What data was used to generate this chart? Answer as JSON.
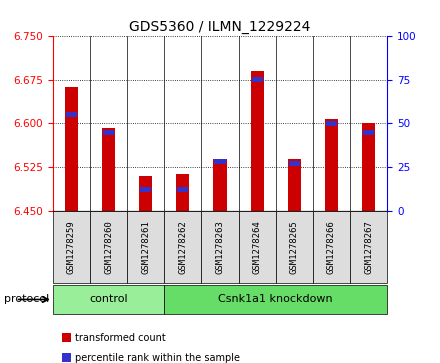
{
  "title": "GDS5360 / ILMN_1229224",
  "samples": [
    "GSM1278259",
    "GSM1278260",
    "GSM1278261",
    "GSM1278262",
    "GSM1278263",
    "GSM1278264",
    "GSM1278265",
    "GSM1278266",
    "GSM1278267"
  ],
  "transformed_count": [
    6.663,
    6.592,
    6.51,
    6.513,
    6.538,
    6.69,
    6.538,
    6.608,
    6.6
  ],
  "percentile_rank": [
    55,
    45,
    12,
    12,
    28,
    75,
    27,
    50,
    45
  ],
  "ylim_left": [
    6.45,
    6.75
  ],
  "ylim_right": [
    0,
    100
  ],
  "yticks_left": [
    6.45,
    6.525,
    6.6,
    6.675,
    6.75
  ],
  "yticks_right": [
    0,
    25,
    50,
    75,
    100
  ],
  "bar_color_red": "#CC0000",
  "bar_color_blue": "#3333CC",
  "groups": [
    {
      "label": "control",
      "n": 3,
      "color": "#99EE99"
    },
    {
      "label": "Csnk1a1 knockdown",
      "n": 6,
      "color": "#66DD66"
    }
  ],
  "protocol_label": "protocol",
  "legend_items": [
    {
      "label": "transformed count",
      "color": "#CC0000"
    },
    {
      "label": "percentile rank within the sample",
      "color": "#3333CC"
    }
  ],
  "grid_color": "black",
  "bar_width": 0.35,
  "base_value": 6.45,
  "sample_box_color": "#DDDDDD",
  "plot_bg": "#FFFFFF",
  "title_fontsize": 10,
  "tick_fontsize": 7.5,
  "label_fontsize": 8
}
